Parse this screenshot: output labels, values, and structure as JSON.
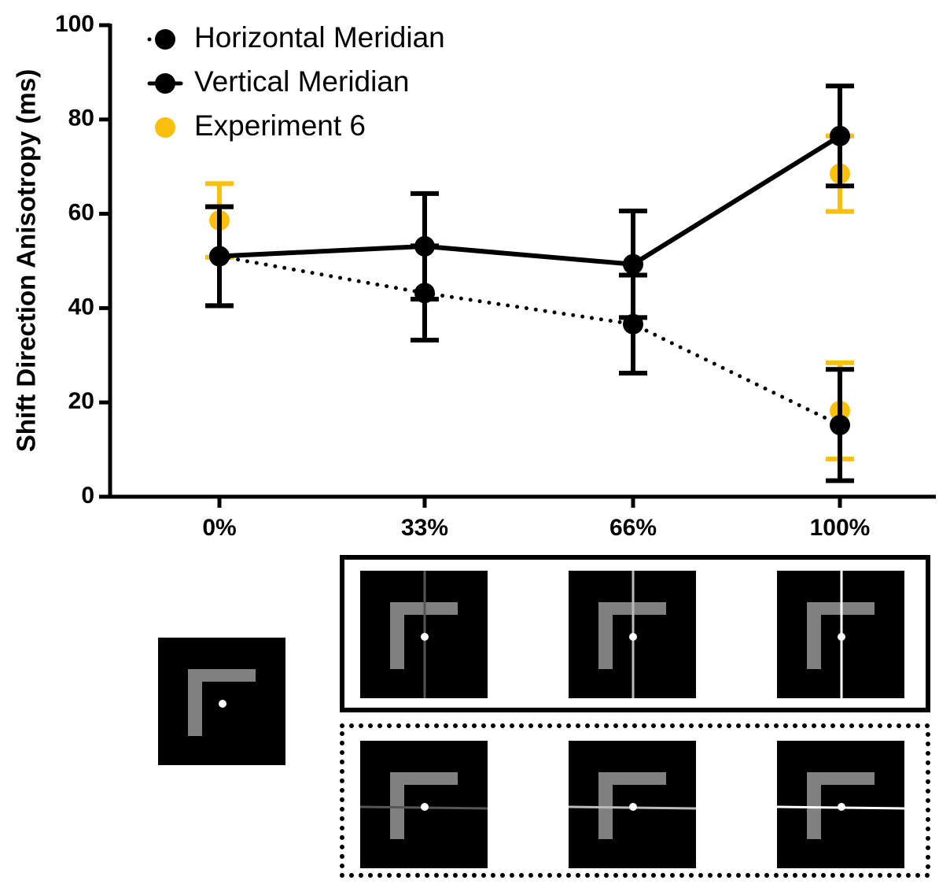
{
  "chart_data": {
    "type": "line",
    "y_label": "Shift Direction Anisotropy (ms)",
    "categories": [
      "0%",
      "33%",
      "66%",
      "100%"
    ],
    "ylim": [
      0,
      100
    ],
    "yticks": [
      0,
      20,
      40,
      60,
      80,
      100
    ],
    "series": [
      {
        "name": "Horizontal Meridian",
        "color": "#000000",
        "style": "dotted",
        "values": [
          51,
          43.2,
          36.6,
          15.2
        ],
        "errors": [
          10.5,
          10,
          10.4,
          11.8
        ]
      },
      {
        "name": "Vertical Meridian",
        "color": "#000000",
        "style": "solid",
        "values": [
          51,
          53.1,
          49.3,
          76.5
        ],
        "errors": [
          10.5,
          11.2,
          11.3,
          10.6
        ]
      },
      {
        "name": "Experiment 6",
        "color": "#fcbf0c",
        "style": "points",
        "x": [
          "0%",
          "100%",
          "100%"
        ],
        "values": [
          58.6,
          68.5,
          18.2
        ],
        "errors": [
          7.8,
          8,
          10.2
        ]
      }
    ]
  }
}
